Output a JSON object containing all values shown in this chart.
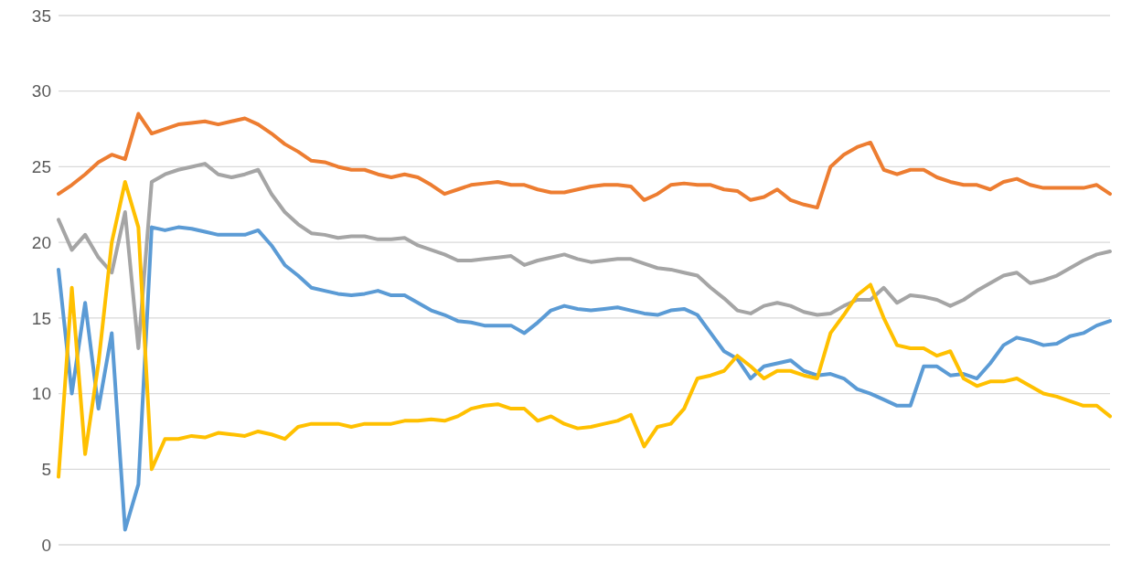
{
  "chart_data": {
    "type": "line",
    "categories": [
      null,
      null,
      null,
      null,
      null,
      null,
      null,
      null,
      null,
      null,
      null,
      null,
      null,
      null,
      null,
      null,
      null,
      null,
      null,
      null,
      null,
      null,
      null,
      null,
      null,
      null,
      null,
      null,
      null,
      null,
      null,
      null,
      null,
      null,
      null,
      null,
      null,
      null,
      null,
      null,
      null,
      null,
      null,
      null,
      null,
      null,
      null,
      null,
      null,
      null,
      null,
      null,
      null,
      null,
      null,
      null,
      null,
      null,
      null,
      null,
      null,
      null,
      null,
      null,
      null,
      null,
      null,
      null,
      null,
      null,
      null,
      null,
      null,
      null,
      null,
      null,
      null,
      null,
      null,
      null
    ],
    "series": [
      {
        "color": "#5b9bd5",
        "values": [
          18.2,
          10,
          16,
          9,
          14,
          1,
          4,
          21,
          20.8,
          21,
          20.9,
          20.7,
          20.5,
          20.5,
          20.5,
          20.8,
          19.8,
          18.5,
          17.8,
          17,
          16.8,
          16.6,
          16.5,
          16.6,
          16.8,
          16.5,
          16.5,
          16,
          15.5,
          15.2,
          14.8,
          14.7,
          14.5,
          14.5,
          14.5,
          14,
          14.7,
          15.5,
          15.8,
          15.6,
          15.5,
          15.6,
          15.7,
          15.5,
          15.3,
          15.2,
          15.5,
          15.6,
          15.2,
          14,
          12.8,
          12.3,
          11,
          11.8,
          12,
          12.2,
          11.5,
          11.2,
          11.3,
          11,
          10.3,
          10,
          9.6,
          9.2,
          9.2,
          11.8,
          11.8,
          11.2,
          11.3,
          11,
          12,
          13.2,
          13.7,
          13.5,
          13.2,
          13.3,
          13.8,
          14,
          14.5,
          14.8
        ]
      },
      {
        "color": "#ed7d31",
        "values": [
          23.2,
          23.8,
          24.5,
          25.3,
          25.8,
          25.5,
          28.5,
          27.2,
          27.5,
          27.8,
          27.9,
          28,
          27.8,
          28,
          28.2,
          27.8,
          27.2,
          26.5,
          26,
          25.4,
          25.3,
          25,
          24.8,
          24.8,
          24.5,
          24.3,
          24.5,
          24.3,
          23.8,
          23.2,
          23.5,
          23.8,
          23.9,
          24,
          23.8,
          23.8,
          23.5,
          23.3,
          23.3,
          23.5,
          23.7,
          23.8,
          23.8,
          23.7,
          22.8,
          23.2,
          23.8,
          23.9,
          23.8,
          23.8,
          23.5,
          23.4,
          22.8,
          23,
          23.5,
          22.8,
          22.5,
          22.3,
          25,
          25.8,
          26.3,
          26.6,
          24.8,
          24.5,
          24.8,
          24.8,
          24.3,
          24,
          23.8,
          23.8,
          23.5,
          24,
          24.2,
          23.8,
          23.6,
          23.6,
          23.6,
          23.6,
          23.8,
          23.2
        ]
      },
      {
        "color": "#a5a5a5",
        "values": [
          21.5,
          19.5,
          20.5,
          19,
          18,
          22,
          13,
          24,
          24.5,
          24.8,
          25,
          25.2,
          24.5,
          24.3,
          24.5,
          24.8,
          23.2,
          22,
          21.2,
          20.6,
          20.5,
          20.3,
          20.4,
          20.4,
          20.2,
          20.2,
          20.3,
          19.8,
          19.5,
          19.2,
          18.8,
          18.8,
          18.9,
          19,
          19.1,
          18.5,
          18.8,
          19,
          19.2,
          18.9,
          18.7,
          18.8,
          18.9,
          18.9,
          18.6,
          18.3,
          18.2,
          18,
          17.8,
          17,
          16.3,
          15.5,
          15.3,
          15.8,
          16,
          15.8,
          15.4,
          15.2,
          15.3,
          15.8,
          16.2,
          16.2,
          17,
          16,
          16.5,
          16.4,
          16.2,
          15.8,
          16.2,
          16.8,
          17.3,
          17.8,
          18,
          17.3,
          17.5,
          17.8,
          18.3,
          18.8,
          19.2,
          19.4
        ]
      },
      {
        "color": "#ffc000",
        "values": [
          4.5,
          17,
          6,
          12,
          20,
          24,
          21,
          5,
          7,
          7,
          7.2,
          7.1,
          7.4,
          7.3,
          7.2,
          7.5,
          7.3,
          7,
          7.8,
          8,
          8,
          8,
          7.8,
          8,
          8,
          8,
          8.2,
          8.2,
          8.3,
          8.2,
          8.5,
          9,
          9.2,
          9.3,
          9,
          9,
          8.2,
          8.5,
          8,
          7.7,
          7.8,
          8,
          8.2,
          8.6,
          6.5,
          7.8,
          8,
          9,
          11,
          11.2,
          11.5,
          12.5,
          11.8,
          11,
          11.5,
          11.5,
          11.2,
          11,
          14,
          15.2,
          16.5,
          17.2,
          15,
          13.2,
          13,
          13,
          12.5,
          12.8,
          11,
          10.5,
          10.8,
          10.8,
          11,
          10.5,
          10,
          9.8,
          9.5,
          9.2,
          9.2,
          8.5
        ]
      }
    ],
    "ylim": [
      0,
      35
    ],
    "yticks": [
      0,
      5,
      10,
      15,
      20,
      25,
      30,
      35
    ],
    "grid": "y",
    "tick_labels": "y"
  }
}
